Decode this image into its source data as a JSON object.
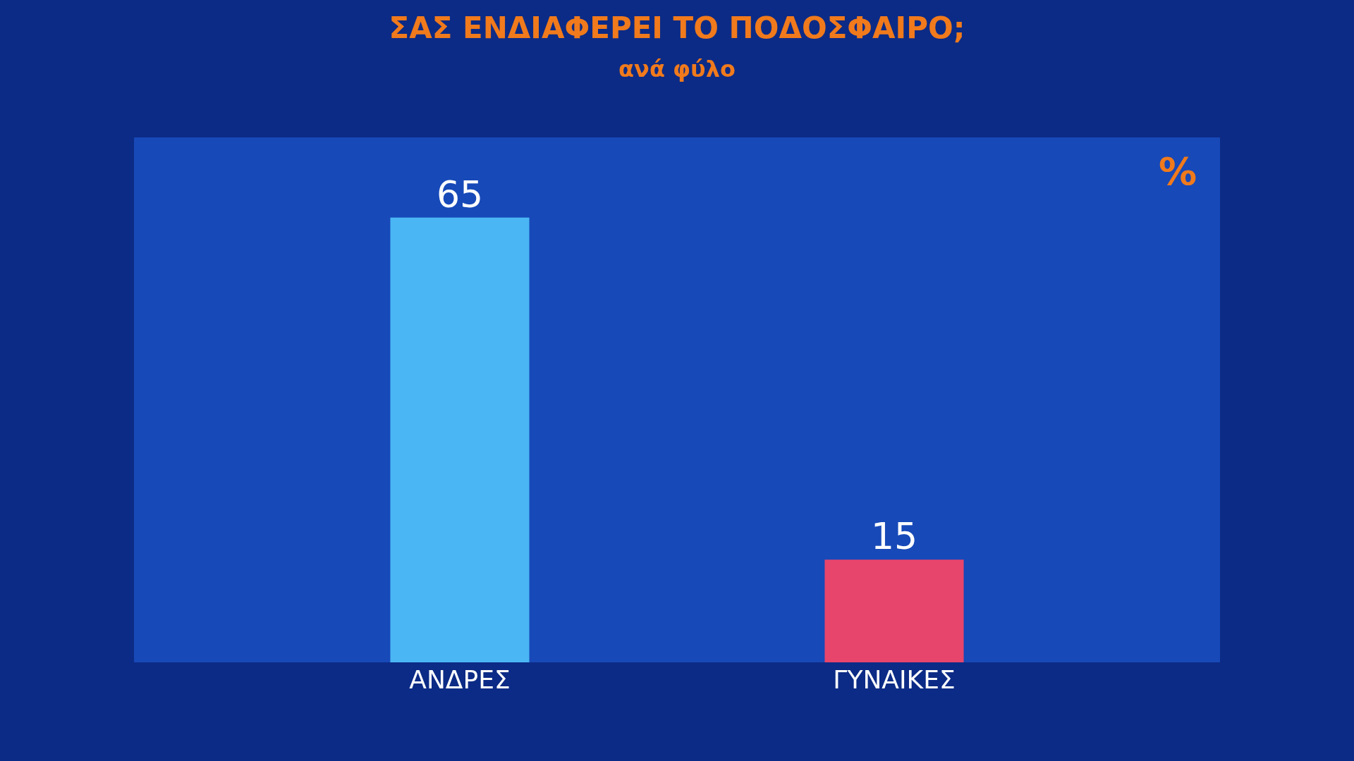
{
  "chart_data": {
    "type": "bar",
    "title": "ΣΑΣ ΕΝΔΙΑΦΕΡΕΙ ΤΟ ΠΟΔΟΣΦΑΙΡΟ;",
    "subtitle": "ανά φύλο",
    "categories": [
      "ΑΝΔΡΕΣ",
      "ΓΥΝΑΙΚΕΣ"
    ],
    "values": [
      65,
      15
    ],
    "colors": [
      "#4ab6f4",
      "#e8456c"
    ],
    "data_labels": true,
    "annotations": [
      "%"
    ]
  }
}
